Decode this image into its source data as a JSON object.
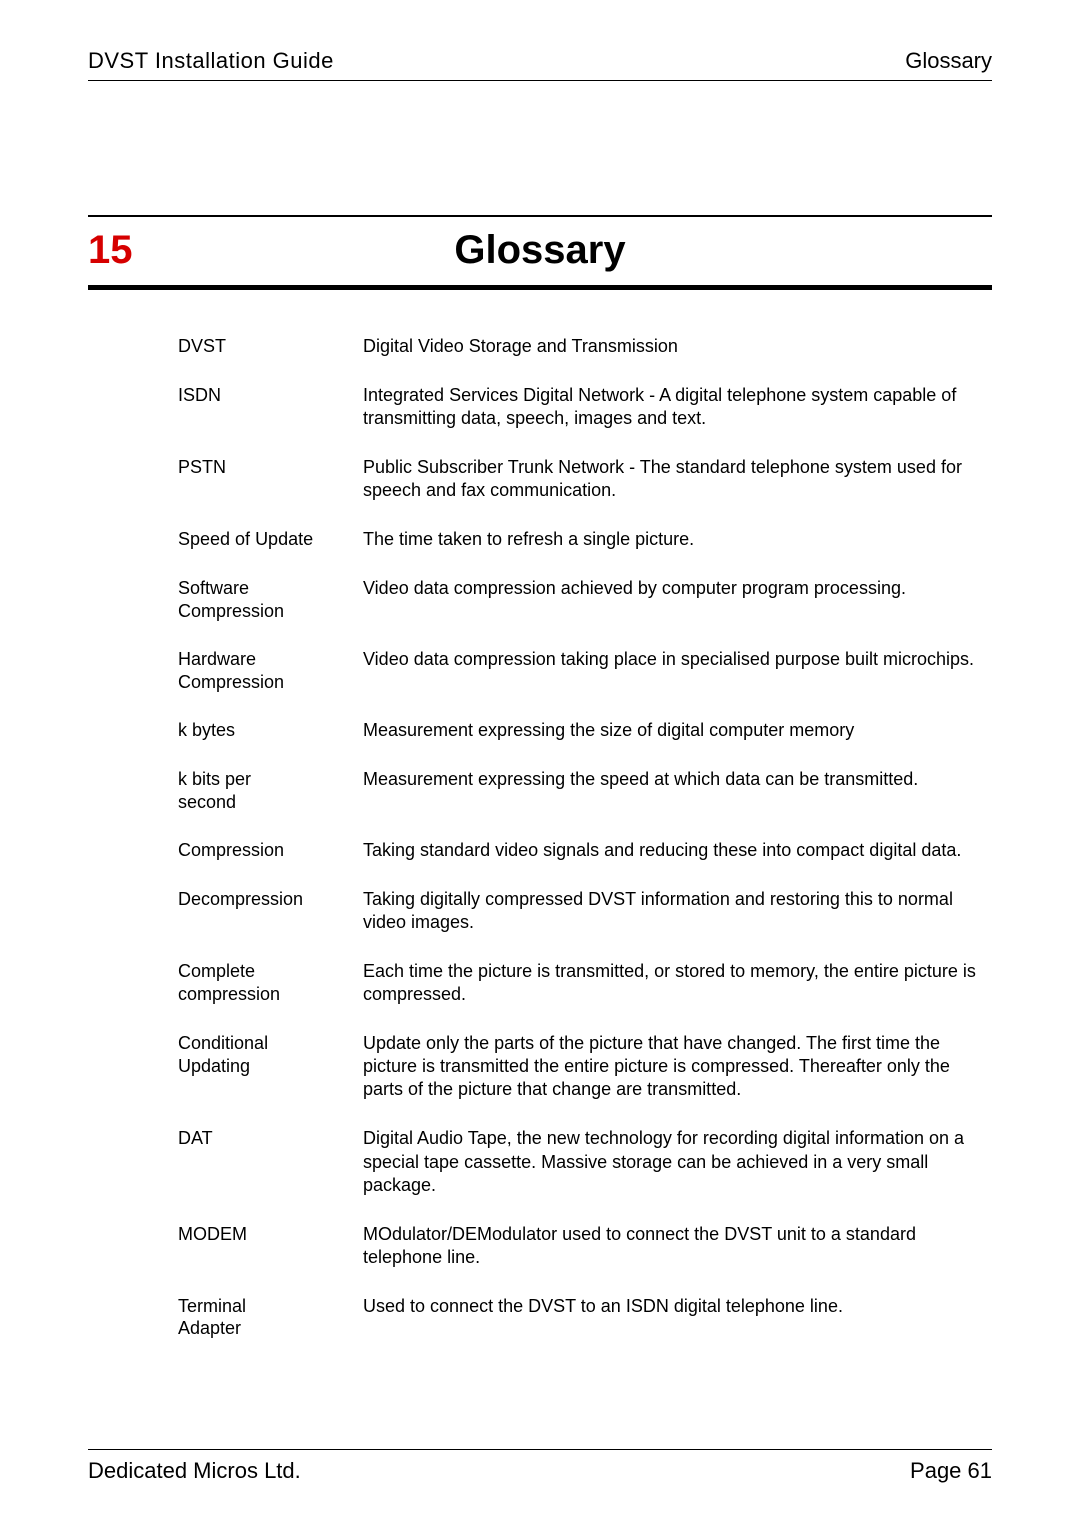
{
  "header": {
    "left": "DVST Installation Guide",
    "right": "Glossary"
  },
  "chapter": {
    "number": "15",
    "title": "Glossary"
  },
  "entries": [
    {
      "term": "DVST",
      "def": "Digital Video Storage and Transmission"
    },
    {
      "term": "ISDN",
      "def": "Integrated Services Digital Network - A digital telephone system capable of transmitting data, speech, images and text."
    },
    {
      "term": "PSTN",
      "def": "Public Subscriber Trunk Network - The standard telephone system used for speech and fax communication."
    },
    {
      "term": "Speed of Update",
      "def": "The time taken to refresh a single picture."
    },
    {
      "term": "Software\nCompression",
      "def": "Video data compression achieved by computer program processing."
    },
    {
      "term": "Hardware\nCompression",
      "def": "Video data compression taking place in specialised purpose built microchips."
    },
    {
      "term": "k bytes",
      "def": "Measurement expressing the size of digital computer memory"
    },
    {
      "term": "k bits per\nsecond",
      "def": "Measurement expressing the speed at which data can be transmitted."
    },
    {
      "term": "Compression",
      "def": "Taking standard video signals and reducing these into compact digital data."
    },
    {
      "term": "Decompression",
      "def": "Taking digitally compressed DVST information and restoring this to normal video images."
    },
    {
      "term": "Complete\ncompression",
      "def": "Each time the picture is transmitted, or stored to memory, the entire picture is compressed."
    },
    {
      "term": "Conditional\nUpdating",
      "def": "Update only the parts of the picture that have changed. The first time the picture is transmitted the entire picture is compressed. Thereafter only the parts of the picture that change are transmitted."
    },
    {
      "term": "DAT",
      "def": "Digital Audio Tape, the new technology for recording digital information on a special tape cassette. Massive storage can be achieved in a very small package."
    },
    {
      "term": "MODEM",
      "def": "MOdulator/DEModulator used to connect the DVST unit to a standard telephone line."
    },
    {
      "term": "Terminal\nAdapter",
      "def": "Used to connect the DVST to an ISDN digital telephone line."
    }
  ],
  "footer": {
    "left": "Dedicated Micros Ltd.",
    "right": "Page 61"
  },
  "colors": {
    "accent_red": "#D60000",
    "text": "#000000",
    "bg": "#ffffff"
  }
}
